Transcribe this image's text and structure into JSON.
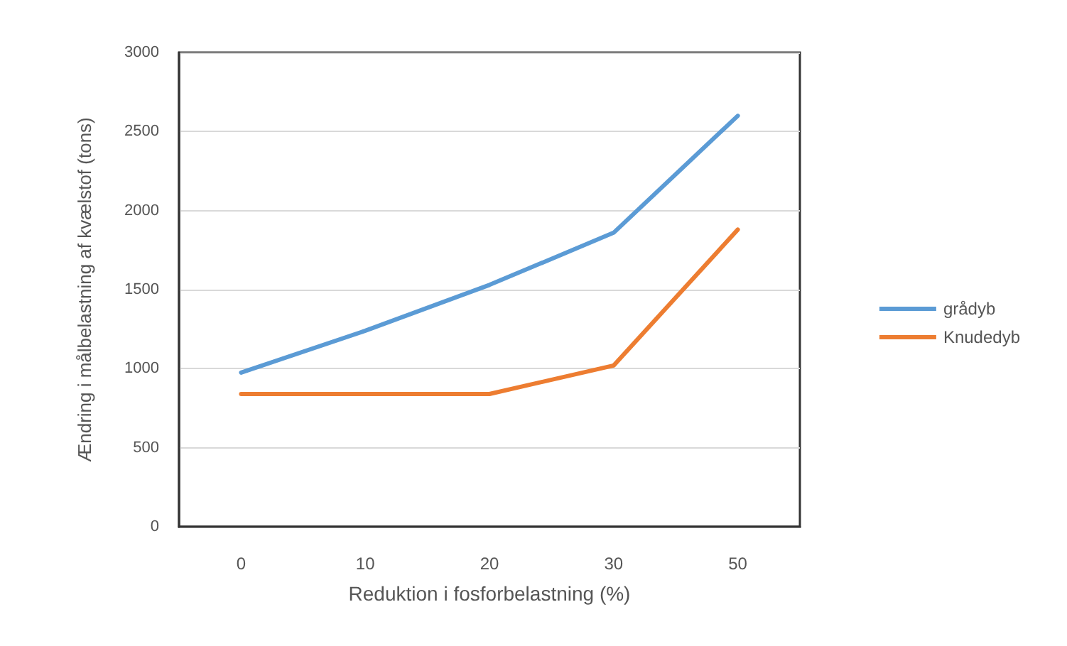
{
  "chart_data": {
    "type": "line",
    "xlabel": "Reduktion i fosforbelastning (%)",
    "ylabel": "Ændring i målbelastning af kvælstof (tons)",
    "categories": [
      "0",
      "10",
      "20",
      "30",
      "50"
    ],
    "series": [
      {
        "name": "grådyb",
        "color": "#5b9bd5",
        "values": [
          975,
          1240,
          1530,
          1860,
          2600
        ]
      },
      {
        "name": "Knudedyb",
        "color": "#ed7d31",
        "values": [
          840,
          840,
          840,
          1020,
          1880
        ]
      }
    ],
    "ylim": [
      0,
      3000
    ],
    "yticks": [
      0,
      500,
      1000,
      1500,
      2000,
      2500,
      3000
    ],
    "grid": "y",
    "legend": "right",
    "marker": "none",
    "line_style": "solid"
  }
}
